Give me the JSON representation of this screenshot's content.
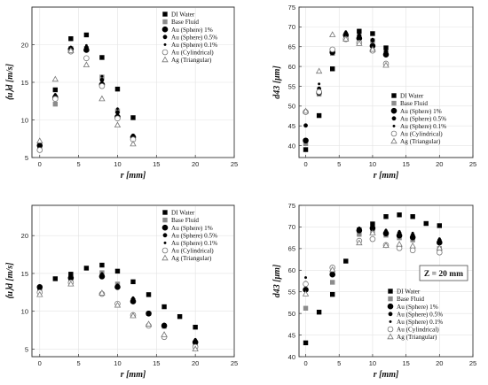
{
  "chart_data": [
    {
      "type": "scatter",
      "xlabel": "r [mm]",
      "ylabel": "⟨u⟩d [m/s]",
      "xlim": [
        -1,
        25
      ],
      "ylim": [
        5,
        25
      ],
      "xticks": [
        "0",
        "5",
        "10",
        "15",
        "20",
        "25"
      ],
      "yticks": [
        "5",
        "10",
        "15",
        "20"
      ],
      "grid": true,
      "legend": "top-right",
      "series": [
        {
          "name": "DI Water",
          "x": [
            0,
            2,
            4,
            6,
            8,
            10,
            12
          ],
          "y": [
            6.4,
            14.0,
            20.8,
            21.3,
            18.3,
            14.1,
            10.3
          ]
        },
        {
          "name": "Base Fluid",
          "x": [
            0,
            2,
            4,
            6,
            8,
            10,
            12
          ],
          "y": [
            6.1,
            12.1,
            19.5,
            19.5,
            15.7,
            11.2,
            7.6
          ]
        },
        {
          "name": "Au (Sphere) 1%",
          "x": [
            0,
            2,
            4,
            6,
            8,
            10,
            12
          ],
          "y": [
            6.6,
            13.0,
            19.4,
            19.3,
            14.7,
            10.4,
            7.7
          ]
        },
        {
          "name": "Au (Sphere) 0.5%",
          "x": [
            0,
            2,
            4,
            6,
            8,
            10,
            12
          ],
          "y": [
            6.8,
            13.2,
            19.3,
            19.6,
            15.3,
            11.0,
            7.9
          ]
        },
        {
          "name": "Au (Sphere) 0.1%",
          "x": [
            0,
            2,
            4,
            6,
            8,
            10,
            12
          ],
          "y": [
            6.9,
            13.4,
            19.7,
            19.9,
            15.8,
            11.5,
            8.0
          ]
        },
        {
          "name": "Au (Cylindrical)",
          "x": [
            0,
            2,
            4,
            6,
            8,
            10,
            12
          ],
          "y": [
            6.0,
            12.8,
            19.1,
            18.2,
            14.5,
            10.2,
            7.4
          ]
        },
        {
          "name": "Ag (Triangular)",
          "x": [
            0,
            2,
            4,
            6,
            8,
            10,
            12
          ],
          "y": [
            7.2,
            15.4,
            19.2,
            17.3,
            12.8,
            9.3,
            6.8
          ]
        }
      ]
    },
    {
      "type": "scatter",
      "xlabel": "r [mm]",
      "ylabel": "d43 [μm]",
      "xlim": [
        -1,
        25
      ],
      "ylim": [
        37,
        75
      ],
      "xticks": [
        "0",
        "5",
        "10",
        "15",
        "20",
        "25"
      ],
      "yticks": [
        "40",
        "45",
        "50",
        "55",
        "60",
        "65",
        "70",
        "75"
      ],
      "grid": true,
      "legend": "right",
      "series": [
        {
          "name": "DI Water",
          "x": [
            0,
            2,
            4,
            6,
            8,
            10,
            12
          ],
          "y": [
            39.0,
            47.6,
            59.4,
            67.8,
            68.9,
            68.3,
            64.7
          ]
        },
        {
          "name": "Base Fluid",
          "x": [
            0,
            2,
            4,
            6,
            8,
            10,
            12
          ],
          "y": [
            40.5,
            53.0,
            63.3,
            67.3,
            67.6,
            66.5,
            63.4
          ]
        },
        {
          "name": "Au (Sphere) 1%",
          "x": [
            0,
            2,
            4,
            6,
            8,
            10,
            12
          ],
          "y": [
            41.3,
            53.4,
            63.6,
            67.9,
            67.1,
            65.2,
            63.0
          ]
        },
        {
          "name": "Au (Sphere) 0.5%",
          "x": [
            0,
            2,
            4,
            6,
            8,
            10,
            12
          ],
          "y": [
            45.1,
            54.4,
            63.8,
            68.4,
            67.8,
            66.6,
            63.7
          ]
        },
        {
          "name": "Au (Sphere) 0.1%",
          "x": [
            0,
            2,
            4,
            6,
            8,
            10,
            12
          ],
          "y": [
            49.0,
            55.6,
            64.2,
            68.8,
            68.2,
            66.9,
            64.1
          ]
        },
        {
          "name": "Au (Cylindrical)",
          "x": [
            0,
            2,
            4,
            6,
            8,
            10,
            12
          ],
          "y": [
            48.5,
            53.6,
            64.3,
            66.9,
            66.0,
            64.0,
            60.7
          ]
        },
        {
          "name": "Ag (Triangular)",
          "x": [
            0,
            2,
            4,
            6,
            8,
            10,
            12
          ],
          "y": [
            48.7,
            58.8,
            68.0,
            66.9,
            65.8,
            64.3,
            60.3
          ]
        }
      ]
    },
    {
      "type": "scatter",
      "xlabel": "r [mm]",
      "ylabel": "⟨u⟩d [m/s]",
      "xlim": [
        -1,
        25
      ],
      "ylim": [
        4,
        24
      ],
      "xticks": [
        "0",
        "5",
        "10",
        "15",
        "20",
        "25"
      ],
      "yticks": [
        "5",
        "10",
        "15",
        "20"
      ],
      "grid": true,
      "legend": "top-right",
      "series": [
        {
          "name": "DI Water",
          "x": [
            0,
            2,
            4,
            6,
            8,
            10,
            12,
            14,
            16,
            18,
            20
          ],
          "y": [
            13.1,
            14.3,
            14.9,
            15.7,
            16.1,
            15.3,
            13.9,
            12.2,
            10.6,
            9.3,
            7.9
          ]
        },
        {
          "name": "Base Fluid",
          "x": [
            0,
            2,
            4,
            6,
            8,
            10,
            12,
            14,
            16,
            18,
            20
          ],
          "y": [
            12.6,
            null,
            14.2,
            null,
            15.1,
            13.6,
            11.4,
            9.7,
            8.0,
            null,
            5.6
          ]
        },
        {
          "name": "Au (Sphere) 1%",
          "x": [
            0,
            2,
            4,
            6,
            8,
            10,
            12,
            14,
            16,
            18,
            20
          ],
          "y": [
            13.2,
            null,
            14.4,
            null,
            14.6,
            13.2,
            11.3,
            9.7,
            8.1,
            null,
            5.9
          ]
        },
        {
          "name": "Au (Sphere) 0.5%",
          "x": [
            0,
            2,
            4,
            6,
            8,
            10,
            12,
            14,
            16,
            18,
            20
          ],
          "y": [
            13.0,
            null,
            14.6,
            null,
            14.8,
            13.3,
            11.6,
            9.8,
            8.2,
            null,
            6.1
          ]
        },
        {
          "name": "Au (Sphere) 0.1%",
          "x": [
            0,
            2,
            4,
            6,
            8,
            10,
            12,
            14,
            16,
            18,
            20
          ],
          "y": [
            12.8,
            null,
            14.8,
            null,
            15.0,
            13.5,
            11.8,
            9.9,
            8.3,
            null,
            6.3
          ]
        },
        {
          "name": "Au (Cylindrical)",
          "x": [
            0,
            2,
            4,
            6,
            8,
            10,
            12,
            14,
            16,
            18,
            20
          ],
          "y": [
            12.5,
            null,
            13.8,
            null,
            12.3,
            11.0,
            9.5,
            8.1,
            6.6,
            null,
            5.3
          ]
        },
        {
          "name": "Ag (Triangular)",
          "x": [
            0,
            2,
            4,
            6,
            8,
            10,
            12,
            14,
            16,
            18,
            20
          ],
          "y": [
            12.2,
            null,
            13.6,
            null,
            12.4,
            10.8,
            9.4,
            8.3,
            6.9,
            null,
            5.0
          ]
        }
      ]
    },
    {
      "type": "scatter",
      "xlabel": "r [mm]",
      "ylabel": "d43 [μm]",
      "xlim": [
        -1,
        25
      ],
      "ylim": [
        40,
        75
      ],
      "xticks": [
        "0",
        "5",
        "10",
        "15",
        "20",
        "25"
      ],
      "yticks": [
        "40",
        "45",
        "50",
        "55",
        "60",
        "65",
        "70",
        "75"
      ],
      "grid": true,
      "legend": "bottom-right",
      "annotation": "Z = 20 mm",
      "series": [
        {
          "name": "DI Water",
          "x": [
            0,
            2,
            4,
            6,
            8,
            10,
            12,
            14,
            16,
            18,
            20
          ],
          "y": [
            43.2,
            50.3,
            54.4,
            62.1,
            69.3,
            70.7,
            72.4,
            72.8,
            72.4,
            70.8,
            70.3
          ]
        },
        {
          "name": "Base Fluid",
          "x": [
            0,
            2,
            4,
            6,
            8,
            10,
            12,
            14,
            16,
            18,
            20
          ],
          "y": [
            51.2,
            null,
            57.2,
            null,
            68.3,
            69.0,
            68.1,
            67.5,
            67.0,
            null,
            65.0
          ]
        },
        {
          "name": "Au (Sphere) 1%",
          "x": [
            0,
            2,
            4,
            6,
            8,
            10,
            12,
            14,
            16,
            18,
            20
          ],
          "y": [
            55.5,
            null,
            59.0,
            null,
            69.2,
            69.7,
            68.5,
            68.0,
            67.6,
            null,
            66.4
          ]
        },
        {
          "name": "Au (Sphere) 0.5%",
          "x": [
            0,
            2,
            4,
            6,
            8,
            10,
            12,
            14,
            16,
            18,
            20
          ],
          "y": [
            57.0,
            null,
            59.4,
            null,
            69.5,
            70.0,
            68.9,
            68.6,
            68.1,
            null,
            66.9
          ]
        },
        {
          "name": "Au (Sphere) 0.1%",
          "x": [
            0,
            2,
            4,
            6,
            8,
            10,
            12,
            14,
            16,
            18,
            20
          ],
          "y": [
            58.3,
            null,
            59.8,
            null,
            69.8,
            70.3,
            69.3,
            69.0,
            68.6,
            null,
            67.3
          ]
        },
        {
          "name": "Au (Cylindrical)",
          "x": [
            0,
            2,
            4,
            6,
            8,
            10,
            12,
            14,
            16,
            18,
            20
          ],
          "y": [
            56.8,
            null,
            60.6,
            null,
            66.8,
            67.2,
            65.8,
            65.1,
            64.6,
            null,
            64.1
          ]
        },
        {
          "name": "Ag (Triangular)",
          "x": [
            0,
            2,
            4,
            6,
            8,
            10,
            12,
            14,
            16,
            18,
            20
          ],
          "y": [
            54.5,
            null,
            60.1,
            null,
            66.3,
            68.6,
            65.7,
            66.0,
            65.6,
            null,
            65.1
          ]
        }
      ]
    }
  ],
  "markers": {
    "DI Water": {
      "shape": "square",
      "fill": "#000000",
      "stroke": "#000000"
    },
    "Base Fluid": {
      "shape": "square",
      "fill": "#8c8c8c",
      "stroke": "#8c8c8c"
    },
    "Au (Sphere) 1%": {
      "shape": "circle",
      "fill": "#000000",
      "stroke": "#000000"
    },
    "Au (Sphere) 0.5%": {
      "shape": "circle-small",
      "fill": "#000000",
      "stroke": "#000000"
    },
    "Au (Sphere) 0.1%": {
      "shape": "dot",
      "fill": "#000000",
      "stroke": "#000000"
    },
    "Au (Cylindrical)": {
      "shape": "circle",
      "fill": "#ffffff",
      "stroke": "#777777"
    },
    "Ag (Triangular)": {
      "shape": "triangle",
      "fill": "#ffffff",
      "stroke": "#777777"
    }
  }
}
